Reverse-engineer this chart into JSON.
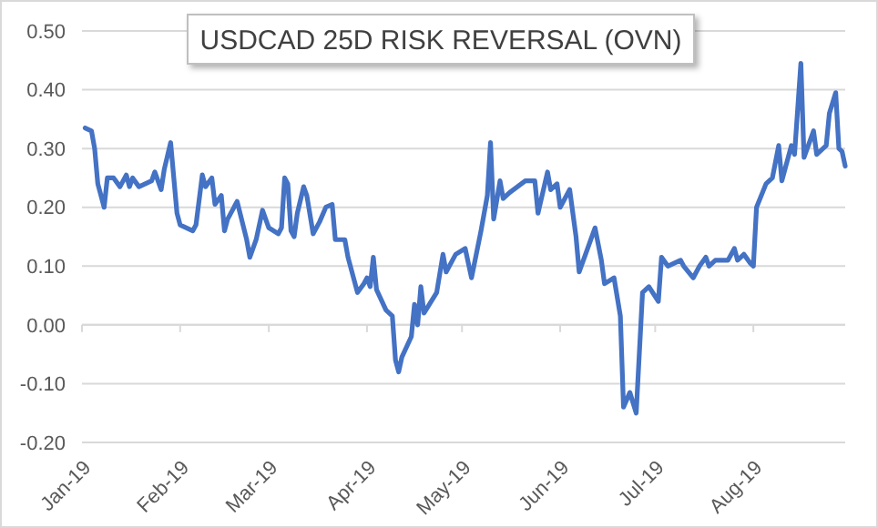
{
  "chart_data": {
    "type": "line",
    "title": "USDCAD 25D RISK REVERSAL (OVN)",
    "x": [
      "2019-01-02",
      "2019-01-04",
      "2019-01-05",
      "2019-01-06",
      "2019-01-08",
      "2019-01-09",
      "2019-01-11",
      "2019-01-13",
      "2019-01-15",
      "2019-01-16",
      "2019-01-17",
      "2019-01-19",
      "2019-01-23",
      "2019-01-24",
      "2019-01-26",
      "2019-01-27",
      "2019-01-29",
      "2019-01-31",
      "2019-02-01",
      "2019-02-05",
      "2019-02-06",
      "2019-02-08",
      "2019-02-09",
      "2019-02-11",
      "2019-02-12",
      "2019-02-14",
      "2019-02-15",
      "2019-02-16",
      "2019-02-19",
      "2019-02-22",
      "2019-02-23",
      "2019-02-25",
      "2019-02-27",
      "2019-03-01",
      "2019-03-04",
      "2019-03-05",
      "2019-03-06",
      "2019-03-07",
      "2019-03-08",
      "2019-03-09",
      "2019-03-10",
      "2019-03-12",
      "2019-03-13",
      "2019-03-15",
      "2019-03-17",
      "2019-03-19",
      "2019-03-21",
      "2019-03-22",
      "2019-03-25",
      "2019-03-26",
      "2019-03-29",
      "2019-03-31",
      "2019-04-01",
      "2019-04-02",
      "2019-04-03",
      "2019-04-04",
      "2019-04-07",
      "2019-04-09",
      "2019-04-10",
      "2019-04-11",
      "2019-04-12",
      "2019-04-15",
      "2019-04-16",
      "2019-04-17",
      "2019-04-18",
      "2019-04-19",
      "2019-04-23",
      "2019-04-25",
      "2019-04-26",
      "2019-04-29",
      "2019-05-02",
      "2019-05-04",
      "2019-05-07",
      "2019-05-09",
      "2019-05-10",
      "2019-05-11",
      "2019-05-13",
      "2019-05-14",
      "2019-05-16",
      "2019-05-21",
      "2019-05-24",
      "2019-05-25",
      "2019-05-28",
      "2019-05-29",
      "2019-05-31",
      "2019-06-01",
      "2019-06-04",
      "2019-06-06",
      "2019-06-07",
      "2019-06-09",
      "2019-06-12",
      "2019-06-14",
      "2019-06-15",
      "2019-06-18",
      "2019-06-20",
      "2019-06-21",
      "2019-06-23",
      "2019-06-25",
      "2019-06-27",
      "2019-06-29",
      "2019-07-02",
      "2019-07-03",
      "2019-07-05",
      "2019-07-09",
      "2019-07-10",
      "2019-07-13",
      "2019-07-15",
      "2019-07-17",
      "2019-07-18",
      "2019-07-20",
      "2019-07-24",
      "2019-07-26",
      "2019-07-27",
      "2019-07-29",
      "2019-07-31",
      "2019-08-01",
      "2019-08-02",
      "2019-08-05",
      "2019-08-07",
      "2019-08-09",
      "2019-08-10",
      "2019-08-13",
      "2019-08-14",
      "2019-08-16",
      "2019-08-17",
      "2019-08-20",
      "2019-08-21",
      "2019-08-24",
      "2019-08-25",
      "2019-08-27",
      "2019-08-28",
      "2019-08-29",
      "2019-08-30"
    ],
    "series": [
      {
        "color": "#4472c4",
        "values": [
          0.335,
          0.33,
          0.3,
          0.24,
          0.2,
          0.25,
          0.25,
          0.235,
          0.255,
          0.235,
          0.25,
          0.235,
          0.245,
          0.26,
          0.23,
          0.265,
          0.31,
          0.19,
          0.17,
          0.16,
          0.17,
          0.255,
          0.235,
          0.25,
          0.205,
          0.22,
          0.16,
          0.18,
          0.21,
          0.145,
          0.115,
          0.145,
          0.195,
          0.165,
          0.155,
          0.165,
          0.25,
          0.24,
          0.16,
          0.15,
          0.19,
          0.235,
          0.22,
          0.155,
          0.175,
          0.2,
          0.205,
          0.145,
          0.145,
          0.115,
          0.055,
          0.07,
          0.08,
          0.065,
          0.115,
          0.06,
          0.025,
          0.015,
          -0.06,
          -0.08,
          -0.055,
          -0.02,
          0.035,
          0.0,
          0.065,
          0.02,
          0.055,
          0.12,
          0.09,
          0.12,
          0.13,
          0.08,
          0.16,
          0.22,
          0.31,
          0.18,
          0.245,
          0.215,
          0.225,
          0.245,
          0.245,
          0.19,
          0.26,
          0.23,
          0.24,
          0.2,
          0.23,
          0.15,
          0.09,
          0.12,
          0.165,
          0.11,
          0.07,
          0.08,
          0.015,
          -0.14,
          -0.115,
          -0.15,
          0.055,
          0.065,
          0.04,
          0.115,
          0.1,
          0.11,
          0.1,
          0.08,
          0.1,
          0.115,
          0.1,
          0.11,
          0.11,
          0.13,
          0.11,
          0.12,
          0.105,
          0.1,
          0.2,
          0.24,
          0.25,
          0.305,
          0.245,
          0.305,
          0.29,
          0.445,
          0.285,
          0.33,
          0.29,
          0.305,
          0.36,
          0.395,
          0.3,
          0.295,
          0.27
        ]
      }
    ],
    "xlim": [
      "2019-01-01",
      "2019-08-30"
    ],
    "xticks": [
      {
        "value": "2019-01-01",
        "label": "Jan-19"
      },
      {
        "value": "2019-02-01",
        "label": "Feb-19"
      },
      {
        "value": "2019-03-01",
        "label": "Mar-19"
      },
      {
        "value": "2019-04-01",
        "label": "Apr-19"
      },
      {
        "value": "2019-05-01",
        "label": "May-19"
      },
      {
        "value": "2019-06-01",
        "label": "Jun-19"
      },
      {
        "value": "2019-07-01",
        "label": "Jul-19"
      },
      {
        "value": "2019-08-01",
        "label": "Aug-19"
      }
    ],
    "ylim": [
      -0.2,
      0.5
    ],
    "yticks": [
      {
        "value": -0.2,
        "label": "-0.20"
      },
      {
        "value": -0.1,
        "label": "-0.10"
      },
      {
        "value": 0,
        "label": "0.00"
      },
      {
        "value": 0.1,
        "label": "0.10"
      },
      {
        "value": 0.2,
        "label": "0.20"
      },
      {
        "value": 0.3,
        "label": "0.30"
      },
      {
        "value": 0.4,
        "label": "0.40"
      },
      {
        "value": 0.5,
        "label": "0.50"
      }
    ],
    "grid": "y",
    "marker": "none",
    "line_style": "solid"
  }
}
